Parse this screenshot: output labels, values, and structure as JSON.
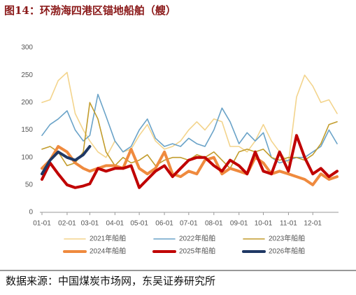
{
  "title": "图14：环渤海四港区锚地船舶（艘）",
  "source": "数据来源：中国煤炭市场网，东吴证券研究所",
  "chart_data": {
    "type": "line",
    "x": [
      "01-01",
      "01-11",
      "01-21",
      "02-01",
      "02-11",
      "02-21",
      "03-01",
      "03-11",
      "03-21",
      "04-01",
      "04-11",
      "04-21",
      "05-01",
      "05-11",
      "05-21",
      "06-01",
      "06-11",
      "06-21",
      "07-01",
      "07-11",
      "07-21",
      "08-01",
      "08-11",
      "08-21",
      "09-01",
      "09-11",
      "09-21",
      "10-01",
      "10-11",
      "10-21",
      "11-01",
      "11-11",
      "11-21",
      "12-01",
      "12-11",
      "12-21",
      "12-31"
    ],
    "xticks": [
      "01-01",
      "02-01",
      "03-01",
      "04-01",
      "05-01",
      "06-01",
      "07-01",
      "08-01",
      "09-01",
      "10-01",
      "11-01",
      "12-01"
    ],
    "ylim": [
      0,
      300
    ],
    "yticks": [
      0,
      50,
      100,
      150,
      200,
      250,
      300
    ],
    "series": [
      {
        "name": "2021年船舶",
        "color": "#f3d48c",
        "values": [
          200,
          205,
          240,
          255,
          180,
          150,
          130,
          110,
          100,
          130,
          110,
          115,
          140,
          160,
          130,
          115,
          120,
          130,
          150,
          165,
          150,
          170,
          165,
          120,
          120,
          110,
          130,
          160,
          130,
          110,
          90,
          210,
          250,
          230,
          200,
          205,
          180
        ]
      },
      {
        "name": "2022年船舶",
        "color": "#6aa3c8",
        "values": [
          140,
          160,
          170,
          185,
          150,
          130,
          140,
          215,
          175,
          130,
          110,
          120,
          150,
          170,
          135,
          120,
          125,
          120,
          135,
          125,
          120,
          150,
          190,
          165,
          125,
          145,
          130,
          145,
          100,
          90,
          95,
          100,
          100,
          110,
          120,
          150,
          125
        ]
      },
      {
        "name": "2023年船舶",
        "color": "#c29c2c",
        "values": [
          115,
          120,
          110,
          85,
          90,
          110,
          200,
          170,
          110,
          85,
          100,
          90,
          95,
          105,
          85,
          95,
          100,
          100,
          95,
          105,
          100,
          110,
          95,
          80,
          110,
          115,
          110,
          115,
          100,
          95,
          100,
          100,
          95,
          105,
          125,
          160,
          165
        ]
      },
      {
        "name": "2024年船舶",
        "color": "#ef8a3e",
        "values": [
          80,
          95,
          120,
          110,
          90,
          80,
          75,
          80,
          85,
          85,
          80,
          115,
          80,
          70,
          80,
          110,
          70,
          65,
          75,
          70,
          95,
          100,
          70,
          80,
          75,
          70,
          100,
          90,
          70,
          75,
          70,
          65,
          60,
          50,
          70,
          60,
          65
        ]
      },
      {
        "name": "2025年船舶",
        "color": "#c00000",
        "values": [
          60,
          90,
          70,
          50,
          45,
          48,
          52,
          80,
          75,
          80,
          80,
          85,
          45,
          60,
          75,
          85,
          65,
          80,
          95,
          100,
          100,
          85,
          75,
          95,
          85,
          70,
          110,
          75,
          70,
          110,
          75,
          140,
          100,
          70,
          80,
          65,
          75
        ]
      },
      {
        "name": "2026年船舶",
        "color": "#1f3864",
        "values": [
          70,
          95,
          110,
          100,
          95,
          105,
          120,
          null,
          null,
          null,
          null,
          null,
          null,
          null,
          null,
          null,
          null,
          null,
          null,
          null,
          null,
          null,
          null,
          null,
          null,
          null,
          null,
          null,
          null,
          null,
          null,
          null,
          null,
          null,
          null,
          null,
          null
        ]
      }
    ]
  }
}
